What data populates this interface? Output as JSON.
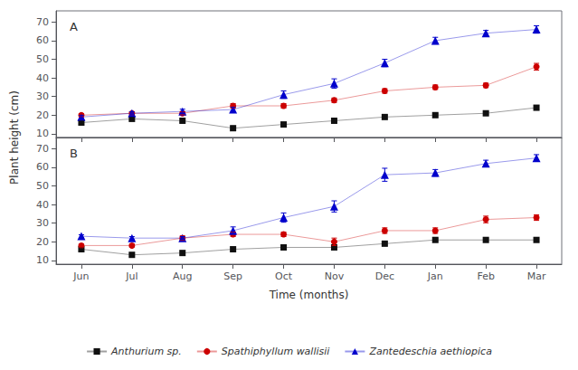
{
  "chart_data": [
    {
      "type": "line",
      "title": "A",
      "categories": [
        "Jun",
        "Jul",
        "Aug",
        "Sep",
        "Oct",
        "Nov",
        "Dec",
        "Jan",
        "Feb",
        "Mar"
      ],
      "ylabel": "Plant height (cm)",
      "ylim": [
        8,
        76
      ],
      "yticks": [
        10,
        20,
        30,
        40,
        50,
        60,
        70
      ],
      "grid": false,
      "tick_labels": "y",
      "series": [
        {
          "name": "Anthurium sp.",
          "color": "#111111",
          "marker": "square",
          "values": [
            16,
            18,
            17,
            13,
            15,
            17,
            19,
            20,
            21,
            24
          ],
          "yerr": [
            0.8,
            0.8,
            0.8,
            0.8,
            0.8,
            0.8,
            0.8,
            0.8,
            0.8,
            1.2
          ]
        },
        {
          "name": "Spathiphyllum wallisii",
          "color": "#cc0000",
          "marker": "circle",
          "values": [
            20,
            21,
            21,
            25,
            25,
            28,
            33,
            35,
            36,
            46
          ],
          "yerr": [
            0.8,
            0.8,
            0.8,
            1.2,
            1.2,
            1.2,
            1.2,
            1.2,
            1.2,
            1.8
          ]
        },
        {
          "name": "Zantedeschia aethiopica",
          "color": "#0000cc",
          "marker": "triangle",
          "values": [
            19,
            21,
            22,
            23,
            31,
            37,
            48,
            60,
            64,
            66
          ],
          "yerr": [
            0.8,
            0.8,
            1.2,
            1.2,
            2.0,
            2.5,
            2.0,
            1.8,
            1.5,
            2.0
          ]
        }
      ]
    },
    {
      "type": "line",
      "title": "B",
      "categories": [
        "Jun",
        "Jul",
        "Aug",
        "Sep",
        "Oct",
        "Nov",
        "Dec",
        "Jan",
        "Feb",
        "Mar"
      ],
      "xlabel": "Time (months)",
      "ylim": [
        8,
        76
      ],
      "yticks": [
        10,
        20,
        30,
        40,
        50,
        60,
        70
      ],
      "grid": false,
      "legend": "bottom",
      "series": [
        {
          "name": "Anthurium sp.",
          "color": "#111111",
          "marker": "square",
          "values": [
            16,
            13,
            14,
            16,
            17,
            17,
            19,
            21,
            21,
            21
          ],
          "yerr": [
            0.8,
            0.8,
            0.8,
            0.8,
            0.8,
            0.8,
            0.8,
            0.8,
            0.8,
            0.8
          ]
        },
        {
          "name": "Spathiphyllum wallisii",
          "color": "#cc0000",
          "marker": "circle",
          "values": [
            18,
            18,
            22,
            24,
            24,
            20,
            26,
            26,
            32,
            33
          ],
          "yerr": [
            0.8,
            0.8,
            1.2,
            1.2,
            1.2,
            2.0,
            1.5,
            1.5,
            1.8,
            1.5
          ]
        },
        {
          "name": "Zantedeschia aethiopica",
          "color": "#0000cc",
          "marker": "triangle",
          "values": [
            23,
            22,
            22,
            26,
            33,
            39,
            56,
            57,
            62,
            65
          ],
          "yerr": [
            0.8,
            0.8,
            0.8,
            2.0,
            2.5,
            3.0,
            3.5,
            1.8,
            1.8,
            1.8
          ]
        }
      ]
    }
  ]
}
